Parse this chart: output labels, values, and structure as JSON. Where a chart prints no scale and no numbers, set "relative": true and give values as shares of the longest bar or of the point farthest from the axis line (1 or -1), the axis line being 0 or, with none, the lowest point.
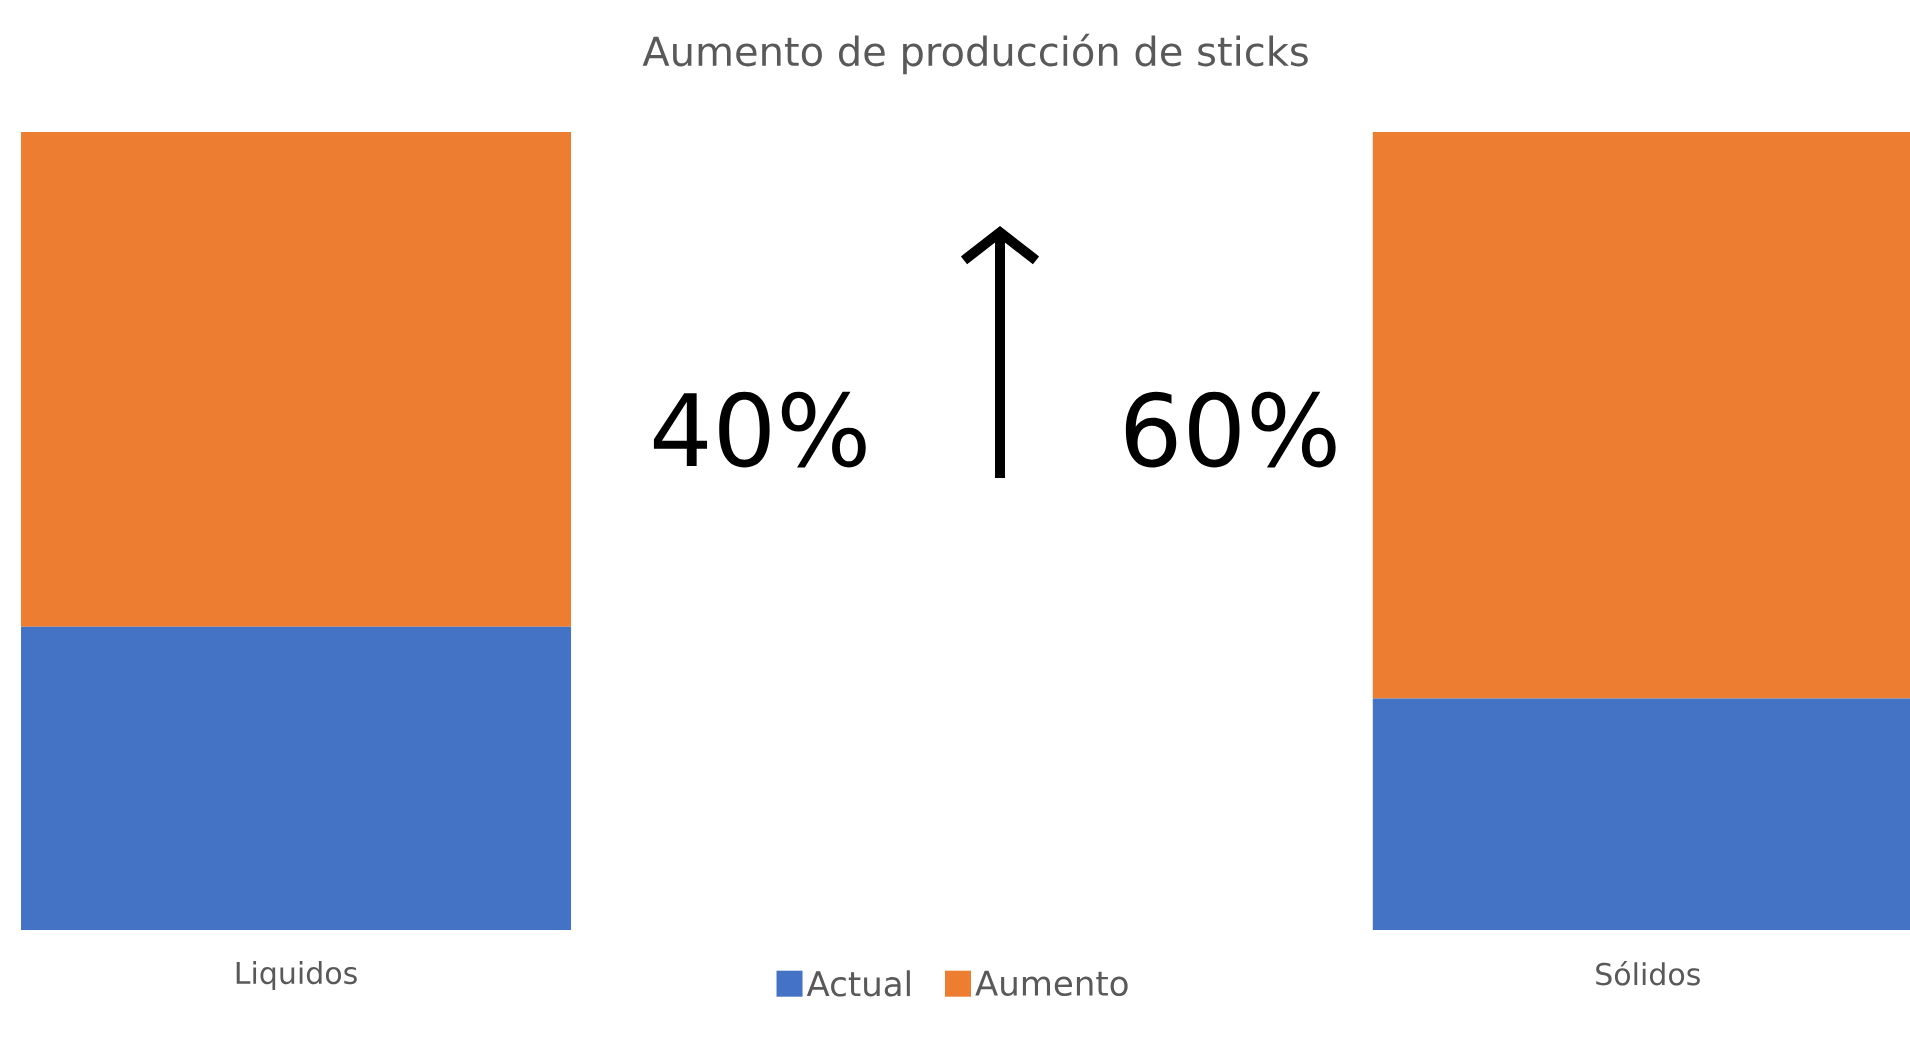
{
  "chart_data": {
    "type": "bar",
    "stacked": true,
    "relative": true,
    "title": "Aumento de producción de sticks",
    "categories": [
      "Liquidos",
      "Sólidos"
    ],
    "series": [
      {
        "name": "Actual",
        "color": "#4472c4",
        "values": [
          0.38,
          0.29
        ]
      },
      {
        "name": "Aumento",
        "color": "#ed7d31",
        "values": [
          0.62,
          0.71
        ]
      }
    ],
    "legend": "bottom",
    "annotations": [
      "40%",
      "60%"
    ]
  }
}
